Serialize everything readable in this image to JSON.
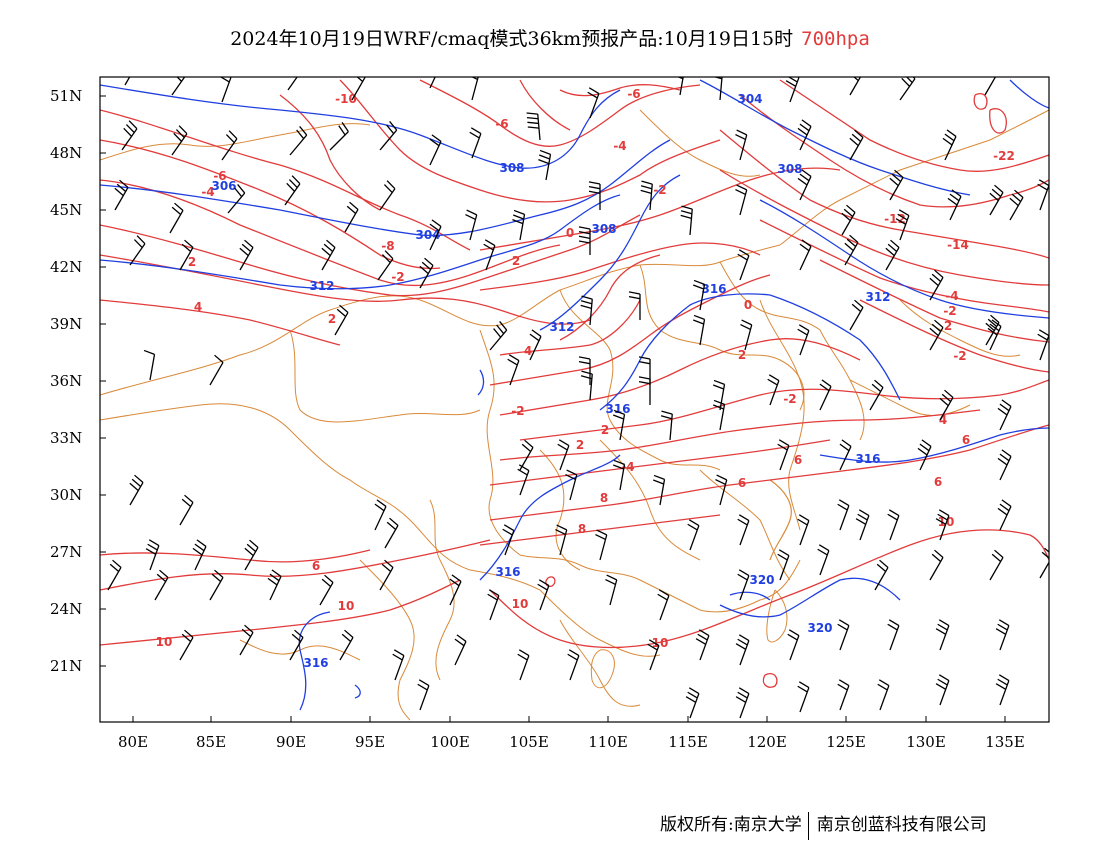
{
  "title": {
    "main": "2024年10月19日WRF/cmaq模式36km预报产品:10月19日15时",
    "level": "700hpa",
    "level_color": "#e23b3b"
  },
  "axes": {
    "lat_labels": [
      "51N",
      "48N",
      "45N",
      "42N",
      "39N",
      "36N",
      "33N",
      "30N",
      "27N",
      "24N",
      "21N"
    ],
    "lon_labels": [
      "80E",
      "85E",
      "90E",
      "95E",
      "100E",
      "105E",
      "110E",
      "115E",
      "120E",
      "125E",
      "130E",
      "135E"
    ]
  },
  "colors": {
    "temperature": "#e23b3b",
    "geopotential": "#1f3fe0",
    "borders": "#d98a3a",
    "wind": "#000000"
  },
  "contours": {
    "temperature_labels": [
      "-10",
      "-6",
      "-6",
      "-6",
      "-4",
      "-2",
      "-22",
      "-12",
      "-14",
      "-8",
      "-4",
      "0",
      "-2",
      "-4",
      "2",
      "2",
      "4",
      "2",
      "-2",
      "0",
      "2",
      "4",
      "-2",
      "-2",
      "2",
      "-2",
      "4",
      "6",
      "2",
      "2",
      "-4",
      "6",
      "6",
      "6",
      "8",
      "6",
      "8",
      "10",
      "10",
      "10",
      "10"
    ],
    "height_labels": [
      "304",
      "308",
      "308",
      "308",
      "304",
      "306",
      "312",
      "316",
      "312",
      "312",
      "316",
      "316",
      "320",
      "320",
      "316",
      "316"
    ]
  },
  "footer": {
    "left": "版权所有:南京大学",
    "right": "南京创蓝科技有限公司"
  }
}
